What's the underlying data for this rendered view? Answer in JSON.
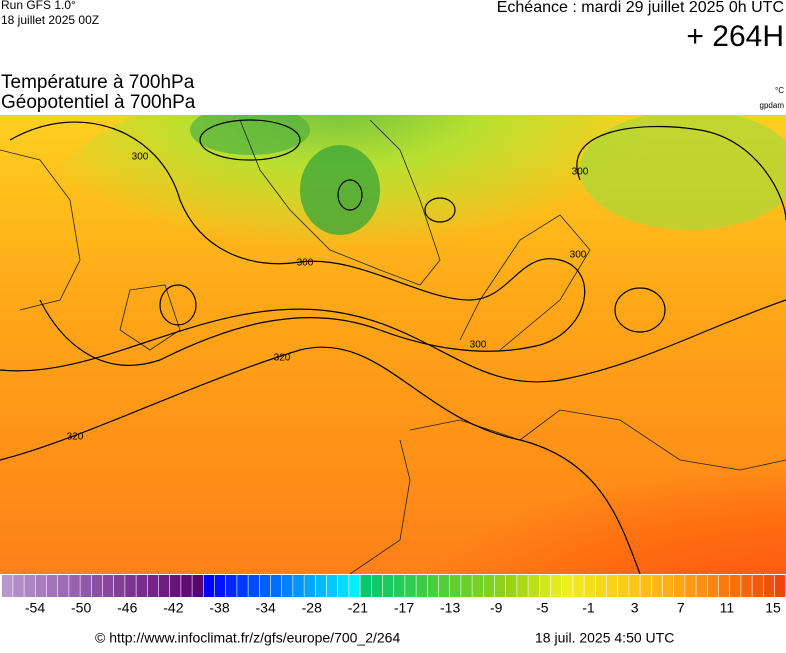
{
  "header": {
    "run": "Run GFS 1.0°",
    "date": "18 juillet 2025 00Z",
    "echeance": "Echéance : mardi 29 juillet 2025 0h UTC",
    "lead": "+ 264H"
  },
  "titles": [
    "Température à 700hPa",
    "Géopotentiel à 700hPa"
  ],
  "units": [
    "°C",
    "gpdam"
  ],
  "map": {
    "contour_labels": [
      "300",
      "300",
      "300",
      "300",
      "300",
      "320",
      "320"
    ]
  },
  "colorbar": {
    "labels": [
      -54,
      -50,
      -46,
      -42,
      -38,
      -34,
      -28,
      -21,
      -17,
      -13,
      -9,
      -5,
      -1,
      3,
      7,
      11,
      15
    ]
  },
  "footer": {
    "url": "© http://www.infoclimat.fr/z/gfs/europe/700_2/264",
    "timestamp": "18 juil. 2025  4:50 UTC"
  }
}
